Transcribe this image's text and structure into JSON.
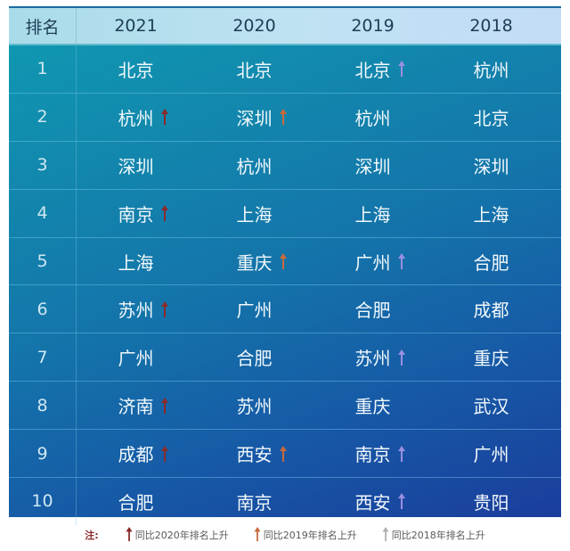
{
  "colors": {
    "arrow_2020": "#8b2a2a",
    "arrow_2019": "#c96a3a",
    "arrow_2018": "#9a8fe0",
    "legend_arrow_2018": "#b0b0b0",
    "header_bg": "#bfe2f2",
    "body_bg_start": "#0f9bb2",
    "body_bg_end": "#1b3d9c"
  },
  "header": {
    "rank": "排名",
    "years": [
      "2021",
      "2020",
      "2019",
      "2018"
    ]
  },
  "rows": [
    {
      "rank": "1",
      "cells": [
        {
          "city": "北京",
          "arrow": null
        },
        {
          "city": "北京",
          "arrow": null
        },
        {
          "city": "北京",
          "arrow": "2018"
        },
        {
          "city": "杭州",
          "arrow": null
        }
      ]
    },
    {
      "rank": "2",
      "cells": [
        {
          "city": "杭州",
          "arrow": "2020"
        },
        {
          "city": "深圳",
          "arrow": "2019"
        },
        {
          "city": "杭州",
          "arrow": null
        },
        {
          "city": "北京",
          "arrow": null
        }
      ]
    },
    {
      "rank": "3",
      "cells": [
        {
          "city": "深圳",
          "arrow": null
        },
        {
          "city": "杭州",
          "arrow": null
        },
        {
          "city": "深圳",
          "arrow": null
        },
        {
          "city": "深圳",
          "arrow": null
        }
      ]
    },
    {
      "rank": "4",
      "cells": [
        {
          "city": "南京",
          "arrow": "2020"
        },
        {
          "city": "上海",
          "arrow": null
        },
        {
          "city": "上海",
          "arrow": null
        },
        {
          "city": "上海",
          "arrow": null
        }
      ]
    },
    {
      "rank": "5",
      "cells": [
        {
          "city": "上海",
          "arrow": null
        },
        {
          "city": "重庆",
          "arrow": "2019"
        },
        {
          "city": "广州",
          "arrow": "2018"
        },
        {
          "city": "合肥",
          "arrow": null
        }
      ]
    },
    {
      "rank": "6",
      "cells": [
        {
          "city": "苏州",
          "arrow": "2020"
        },
        {
          "city": "广州",
          "arrow": null
        },
        {
          "city": "合肥",
          "arrow": null
        },
        {
          "city": "成都",
          "arrow": null
        }
      ]
    },
    {
      "rank": "7",
      "cells": [
        {
          "city": "广州",
          "arrow": null
        },
        {
          "city": "合肥",
          "arrow": null
        },
        {
          "city": "苏州",
          "arrow": "2018"
        },
        {
          "city": "重庆",
          "arrow": null
        }
      ]
    },
    {
      "rank": "8",
      "cells": [
        {
          "city": "济南",
          "arrow": "2020"
        },
        {
          "city": "苏州",
          "arrow": null
        },
        {
          "city": "重庆",
          "arrow": null
        },
        {
          "city": "武汉",
          "arrow": null
        }
      ]
    },
    {
      "rank": "9",
      "cells": [
        {
          "city": "成都",
          "arrow": "2020"
        },
        {
          "city": "西安",
          "arrow": "2019"
        },
        {
          "city": "南京",
          "arrow": "2018"
        },
        {
          "city": "广州",
          "arrow": null
        }
      ]
    },
    {
      "rank": "10",
      "cells": [
        {
          "city": "合肥",
          "arrow": null
        },
        {
          "city": "南京",
          "arrow": null
        },
        {
          "city": "西安",
          "arrow": "2018"
        },
        {
          "city": "贵阳",
          "arrow": null
        }
      ]
    }
  ],
  "legend": {
    "note_label": "注:",
    "items": [
      {
        "arrow": "2020",
        "label": "同比2020年排名上升"
      },
      {
        "arrow": "2019",
        "label": "同比2019年排名上升"
      },
      {
        "arrow": "2018",
        "label": "同比2018年排名上升"
      }
    ]
  }
}
